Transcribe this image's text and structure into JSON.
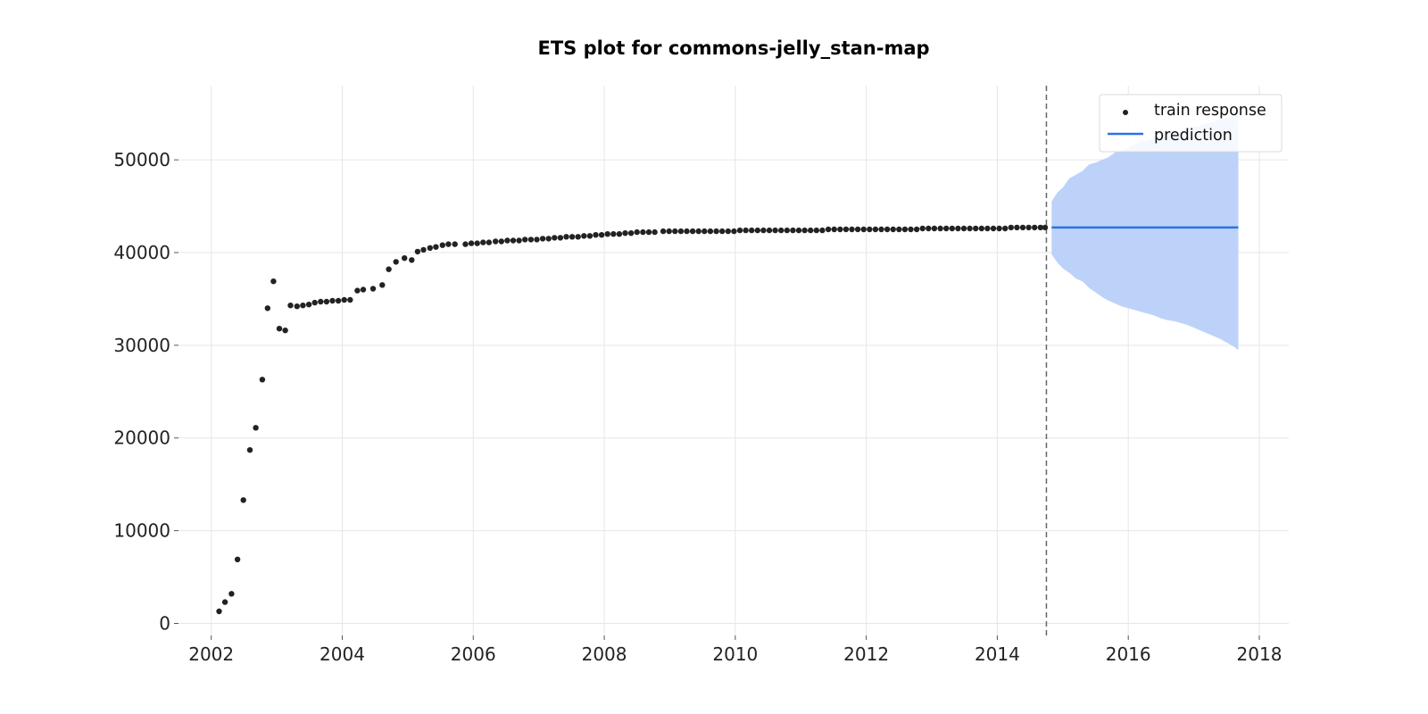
{
  "chart_data": {
    "type": "scatter",
    "title": "ETS plot for commons-jelly_stan-map",
    "xlabel": "",
    "ylabel": "",
    "xlim": [
      2001.5,
      2018.45
    ],
    "ylim": [
      -1300,
      58000
    ],
    "x_ticks": [
      "2002",
      "2004",
      "2006",
      "2008",
      "2010",
      "2012",
      "2014",
      "2016",
      "2018"
    ],
    "y_ticks": [
      "0",
      "10000",
      "20000",
      "30000",
      "40000",
      "50000"
    ],
    "grid": true,
    "legend_position": "top-right",
    "legend": [
      "train response",
      "prediction"
    ],
    "colors": {
      "train": "#222222",
      "prediction": "#2a72e5",
      "interval": "#bcd2f8",
      "cutoff": "#666666",
      "grid": "#e6e6e6"
    },
    "forecast_start": 2014.75,
    "series": [
      {
        "name": "train response",
        "type": "scatter",
        "x": [
          2002.12,
          2002.21,
          2002.31,
          2002.4,
          2002.49,
          2002.59,
          2002.68,
          2002.78,
          2002.86,
          2002.95,
          2003.04,
          2003.13,
          2003.21,
          2003.31,
          2003.4,
          2003.49,
          2003.58,
          2003.67,
          2003.76,
          2003.85,
          2003.94,
          2004.03,
          2004.12,
          2004.23,
          2004.32,
          2004.47,
          2004.61,
          2004.71,
          2004.82,
          2004.95,
          2005.06,
          2005.15,
          2005.24,
          2005.34,
          2005.43,
          2005.53,
          2005.62,
          2005.72,
          2005.88,
          2005.97,
          2006.06,
          2006.15,
          2006.24,
          2006.34,
          2006.43,
          2006.52,
          2006.61,
          2006.7,
          2006.79,
          2006.88,
          2006.97,
          2007.06,
          2007.15,
          2007.24,
          2007.33,
          2007.42,
          2007.51,
          2007.6,
          2007.69,
          2007.78,
          2007.87,
          2007.96,
          2008.05,
          2008.14,
          2008.23,
          2008.32,
          2008.41,
          2008.5,
          2008.59,
          2008.68,
          2008.77,
          2008.9,
          2008.99,
          2009.08,
          2009.17,
          2009.26,
          2009.35,
          2009.44,
          2009.53,
          2009.62,
          2009.71,
          2009.8,
          2009.89,
          2009.98,
          2010.07,
          2010.16,
          2010.25,
          2010.34,
          2010.43,
          2010.52,
          2010.61,
          2010.7,
          2010.79,
          2010.88,
          2010.97,
          2011.06,
          2011.15,
          2011.24,
          2011.33,
          2011.42,
          2011.51,
          2011.6,
          2011.69,
          2011.78,
          2011.87,
          2011.96,
          2012.05,
          2012.14,
          2012.23,
          2012.32,
          2012.41,
          2012.5,
          2012.59,
          2012.68,
          2012.77,
          2012.86,
          2012.95,
          2013.04,
          2013.13,
          2013.22,
          2013.31,
          2013.4,
          2013.49,
          2013.58,
          2013.67,
          2013.76,
          2013.85,
          2013.94,
          2014.03,
          2014.12,
          2014.21,
          2014.3,
          2014.39,
          2014.48,
          2014.57,
          2014.66,
          2014.73
        ],
        "y": [
          1300,
          2300,
          3200,
          6900,
          13300,
          18700,
          21100,
          26300,
          34000,
          36900,
          31800,
          31600,
          34300,
          34200,
          34300,
          34400,
          34600,
          34700,
          34700,
          34800,
          34800,
          34900,
          34900,
          35900,
          36000,
          36100,
          36500,
          38200,
          39000,
          39400,
          39200,
          40100,
          40300,
          40500,
          40600,
          40800,
          40900,
          40900,
          40900,
          41000,
          41000,
          41100,
          41100,
          41200,
          41200,
          41300,
          41300,
          41300,
          41400,
          41400,
          41400,
          41500,
          41500,
          41600,
          41600,
          41700,
          41700,
          41700,
          41800,
          41800,
          41900,
          41900,
          42000,
          42000,
          42000,
          42100,
          42100,
          42200,
          42200,
          42200,
          42200,
          42300,
          42300,
          42300,
          42300,
          42300,
          42300,
          42300,
          42300,
          42300,
          42300,
          42300,
          42300,
          42300,
          42400,
          42400,
          42400,
          42400,
          42400,
          42400,
          42400,
          42400,
          42400,
          42400,
          42400,
          42400,
          42400,
          42400,
          42400,
          42500,
          42500,
          42500,
          42500,
          42500,
          42500,
          42500,
          42500,
          42500,
          42500,
          42500,
          42500,
          42500,
          42500,
          42500,
          42500,
          42600,
          42600,
          42600,
          42600,
          42600,
          42600,
          42600,
          42600,
          42600,
          42600,
          42600,
          42600,
          42600,
          42600,
          42600,
          42700,
          42700,
          42700,
          42700,
          42700,
          42700,
          42700
        ]
      },
      {
        "name": "prediction",
        "type": "line",
        "x": [
          2014.83,
          2017.68
        ],
        "y": [
          42700,
          42700
        ]
      }
    ],
    "interval": {
      "x": [
        2014.83,
        2014.92,
        2015.0,
        2015.1,
        2015.2,
        2015.3,
        2015.4,
        2015.5,
        2015.6,
        2015.7,
        2015.8,
        2015.9,
        2016.0,
        2016.1,
        2016.2,
        2016.3,
        2016.4,
        2016.5,
        2016.6,
        2016.7,
        2016.8,
        2016.9,
        2017.0,
        2017.1,
        2017.2,
        2017.3,
        2017.4,
        2017.5,
        2017.6,
        2017.68
      ],
      "upper": [
        45500,
        46500,
        47000,
        48000,
        48400,
        48800,
        49500,
        49700,
        50000,
        50300,
        50800,
        51000,
        51300,
        51700,
        52000,
        52100,
        52400,
        52600,
        52900,
        53100,
        53200,
        53400,
        53500,
        53700,
        53900,
        54100,
        54300,
        54500,
        54700,
        55000
      ],
      "lower": [
        39800,
        38900,
        38300,
        37800,
        37200,
        36900,
        36200,
        35700,
        35200,
        34800,
        34500,
        34200,
        34000,
        33800,
        33600,
        33400,
        33200,
        32900,
        32700,
        32600,
        32400,
        32200,
        31900,
        31600,
        31300,
        31000,
        30700,
        30300,
        29900,
        29500
      ]
    }
  }
}
